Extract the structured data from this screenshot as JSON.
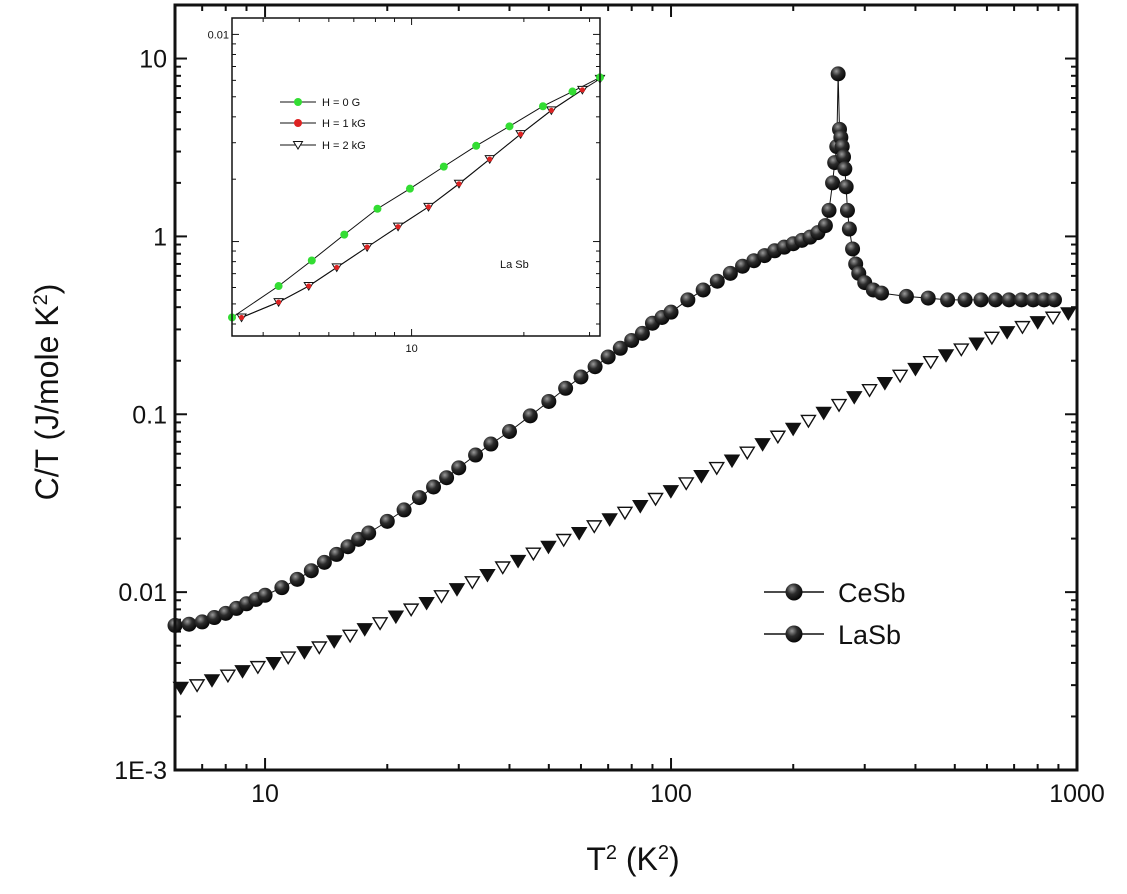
{
  "chart_data": [
    {
      "type": "scatter",
      "x_scale": "log",
      "y_scale": "log",
      "xlim": [
        6,
        1000
      ],
      "ylim": [
        0.001,
        20
      ],
      "xlabel": "T",
      "xlabel_sup": "2",
      "xlabel_units": " (K",
      "xlabel_units_sup": "2",
      "xlabel_units_end": ")",
      "ylabel": "C/T (J/mole K",
      "ylabel_sup": "2",
      "ylabel_end": ")",
      "x_ticks": [
        {
          "value": 10,
          "label": "10"
        },
        {
          "value": 100,
          "label": "100"
        },
        {
          "value": 1000,
          "label": "1000"
        }
      ],
      "y_ticks": [
        {
          "value": 0.001,
          "label": "1E-3"
        },
        {
          "value": 0.01,
          "label": "0.01"
        },
        {
          "value": 0.1,
          "label": "0.1"
        },
        {
          "value": 1,
          "label": "1"
        },
        {
          "value": 10,
          "label": "10"
        }
      ],
      "legend_position": "bottom-right",
      "series": [
        {
          "name": "CeSb",
          "marker": "sphere",
          "color": "#1a1a1a",
          "x": [
            6.0,
            6.5,
            7.0,
            7.5,
            8.0,
            8.5,
            9.0,
            9.5,
            10.0,
            11.0,
            12.0,
            13.0,
            14.0,
            15.0,
            16.0,
            17.0,
            18.0,
            20.0,
            22.0,
            24.0,
            26.0,
            28.0,
            30.0,
            33.0,
            36.0,
            40.0,
            45.0,
            50.0,
            55.0,
            60.0,
            65.0,
            70.0,
            75.0,
            80.0,
            85.0,
            90.0,
            95.0,
            100.0,
            110.0,
            120.0,
            130.0,
            140.0,
            150.0,
            160.0,
            170.0,
            180.0,
            190.0,
            200.0,
            210.0,
            220.0,
            230.0,
            240.0,
            245.0,
            250.0,
            253.0,
            256.0,
            258.0,
            260.0,
            262.0,
            264.0,
            266.0,
            268.0,
            270.0,
            272.0,
            275.0,
            280.0,
            285.0,
            290.0,
            300.0,
            315.0,
            330.0,
            380.0,
            430.0,
            480.0,
            530.0,
            580.0,
            630.0,
            680.0,
            730.0,
            780.0,
            830.0,
            880.0
          ],
          "y": [
            0.0065,
            0.0066,
            0.0068,
            0.0072,
            0.0076,
            0.0081,
            0.0086,
            0.0091,
            0.0096,
            0.0106,
            0.0118,
            0.0132,
            0.0147,
            0.0163,
            0.018,
            0.0198,
            0.0215,
            0.025,
            0.029,
            0.034,
            0.039,
            0.044,
            0.05,
            0.059,
            0.068,
            0.08,
            0.098,
            0.118,
            0.14,
            0.162,
            0.185,
            0.21,
            0.235,
            0.26,
            0.285,
            0.325,
            0.35,
            0.375,
            0.44,
            0.5,
            0.56,
            0.62,
            0.68,
            0.73,
            0.78,
            0.83,
            0.87,
            0.91,
            0.95,
            0.99,
            1.05,
            1.15,
            1.4,
            2.0,
            2.6,
            3.2,
            8.2,
            4.0,
            3.6,
            3.2,
            2.8,
            2.4,
            1.9,
            1.4,
            1.1,
            0.85,
            0.7,
            0.62,
            0.55,
            0.5,
            0.48,
            0.46,
            0.45,
            0.44,
            0.44,
            0.44,
            0.44,
            0.44,
            0.44,
            0.44,
            0.44,
            0.44
          ]
        },
        {
          "name": "LaSb",
          "marker": "triangle-down",
          "color": "#111111",
          "x": [
            6.2,
            6.8,
            7.4,
            8.1,
            8.8,
            9.6,
            10.5,
            11.4,
            12.5,
            13.6,
            14.8,
            16.2,
            17.6,
            19.2,
            21.0,
            22.9,
            25.0,
            27.2,
            29.7,
            32.4,
            35.3,
            38.5,
            42.0,
            45.8,
            49.9,
            54.4,
            59.4,
            64.7,
            70.6,
            77.0,
            84.0,
            91.6,
            99.9,
            109.0,
            118.8,
            129.6,
            141.3,
            154.1,
            168.1,
            183.3,
            199.9,
            218.0,
            237.7,
            259.3,
            282.7,
            308.3,
            336.3,
            366.7,
            400.0,
            436.2,
            475.7,
            518.8,
            565.8,
            617.0,
            672.9,
            733.9,
            800.3,
            872.8,
            951.9
          ],
          "y": [
            0.0029,
            0.003,
            0.0032,
            0.0034,
            0.0036,
            0.0038,
            0.004,
            0.0043,
            0.0046,
            0.0049,
            0.0053,
            0.0057,
            0.0062,
            0.0067,
            0.0073,
            0.008,
            0.0087,
            0.0095,
            0.0104,
            0.0114,
            0.0125,
            0.0138,
            0.015,
            0.0165,
            0.018,
            0.0197,
            0.0215,
            0.0235,
            0.0257,
            0.028,
            0.0305,
            0.0335,
            0.037,
            0.041,
            0.045,
            0.05,
            0.055,
            0.061,
            0.068,
            0.075,
            0.083,
            0.092,
            0.102,
            0.113,
            0.125,
            0.137,
            0.15,
            0.165,
            0.18,
            0.197,
            0.215,
            0.232,
            0.25,
            0.27,
            0.29,
            0.31,
            0.33,
            0.35,
            0.37
          ]
        }
      ]
    },
    {
      "type": "line",
      "inset": true,
      "x_scale": "log",
      "y_scale": "log",
      "xlim": [
        3.3,
        32.0
      ],
      "ylim": [
        0.00035,
        0.012
      ],
      "x_ticks": [
        {
          "value": 10,
          "label": "10"
        }
      ],
      "y_ticks": [
        {
          "value": 0.01,
          "label": "0.01"
        }
      ],
      "annotation": "La Sb",
      "legend_position": "top-left",
      "series": [
        {
          "name": "H = 0 G",
          "marker": "circle",
          "color": "#33dd33",
          "x": [
            3.3,
            4.4,
            5.4,
            6.6,
            8.1,
            9.9,
            12.2,
            14.9,
            18.3,
            22.5,
            27.0,
            32.0
          ],
          "y": [
            0.00043,
            0.00061,
            0.00081,
            0.00108,
            0.00144,
            0.0018,
            0.0023,
            0.0029,
            0.0036,
            0.0045,
            0.0053,
            0.0062
          ]
        },
        {
          "name": "H = 1 kG",
          "marker": "circle",
          "color": "#dd2222",
          "x": [
            3.5,
            4.4,
            5.3,
            6.3,
            7.6,
            9.2,
            11.1,
            13.4,
            16.2,
            19.6,
            23.7,
            28.7
          ],
          "y": [
            0.00043,
            0.00051,
            0.00061,
            0.00075,
            0.00094,
            0.00118,
            0.00147,
            0.0019,
            0.0025,
            0.0033,
            0.0043,
            0.0054
          ]
        },
        {
          "name": "H = 2 kG",
          "marker": "triangle-down",
          "color": "#ffffff",
          "x": [
            3.5,
            4.4,
            5.3,
            6.3,
            7.6,
            9.2,
            11.1,
            13.4,
            16.2,
            19.6,
            23.7,
            28.7,
            32.0
          ],
          "y": [
            0.00043,
            0.00051,
            0.00061,
            0.00075,
            0.00094,
            0.00118,
            0.00147,
            0.0019,
            0.0025,
            0.0033,
            0.0043,
            0.0054,
            0.0061
          ]
        }
      ]
    }
  ]
}
